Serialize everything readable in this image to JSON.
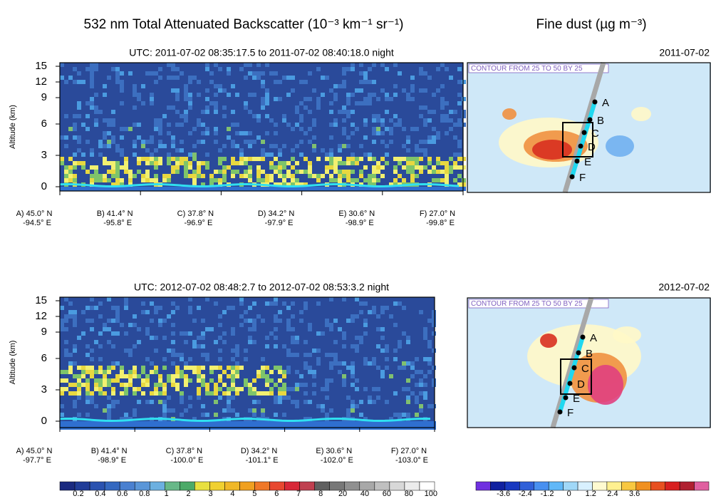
{
  "title_left": "532 nm Total Attenuated Backscatter (10⁻³ km⁻¹ sr⁻¹)",
  "title_right": "Fine dust (µg m⁻³)",
  "panels": [
    {
      "subtitle": "UTC: 2011-07-02 08:35:17.5 to 2011-07-02 08:40:18.0 night",
      "y_label": "Altitude (km)",
      "ylim": [
        0,
        15
      ],
      "yticks": [
        0,
        3,
        6,
        9,
        12,
        15
      ],
      "x_labels": [
        {
          "lat": "A) 45.0° N",
          "lon": "-94.5° E"
        },
        {
          "lat": "B) 41.4° N",
          "lon": "-95.8° E"
        },
        {
          "lat": "C) 37.8° N",
          "lon": "-96.9° E"
        },
        {
          "lat": "D) 34.2° N",
          "lon": "-97.9° E"
        },
        {
          "lat": "E) 30.6° N",
          "lon": "-98.9° E"
        },
        {
          "lat": "F) 27.0° N",
          "lon": "-99.8° E"
        }
      ],
      "map_date": "2011-07-02",
      "map_contour": "CONTOUR FROM 25 TO 50 BY 25",
      "track_labels": [
        "A",
        "B",
        "C",
        "D",
        "E",
        "F"
      ]
    },
    {
      "subtitle": "UTC: 2012-07-02 08:48:2.7 to 2012-07-02 08:53:3.2 night",
      "y_label": "Altitude (km)",
      "ylim": [
        0,
        15
      ],
      "yticks": [
        0,
        3,
        6,
        9,
        12,
        15
      ],
      "x_labels": [
        {
          "lat": "A) 45.0° N",
          "lon": "-97.7° E"
        },
        {
          "lat": "B) 41.4° N",
          "lon": "-98.9° E"
        },
        {
          "lat": "C) 37.8° N",
          "lon": "-100.0° E"
        },
        {
          "lat": "D) 34.2° N",
          "lon": "-101.1° E"
        },
        {
          "lat": "E) 30.6° N",
          "lon": "-102.0° E"
        },
        {
          "lat": "F) 27.0° N",
          "lon": "-103.0° E"
        }
      ],
      "map_date": "2012-07-02",
      "map_contour": "CONTOUR FROM 25 TO 50 BY 25",
      "track_labels": [
        "A",
        "B",
        "C",
        "D",
        "E",
        "F"
      ]
    }
  ],
  "colorbar_left": [
    "0.2",
    "0.4",
    "0.6",
    "0.8",
    "1",
    "2",
    "3",
    "4",
    "5",
    "6",
    "7",
    "8",
    "20",
    "40",
    "60",
    "80",
    "100"
  ],
  "colorbar_right": [
    "-3.6",
    "-2.4",
    "-1.2",
    "0",
    "1.2",
    "2.4",
    "3.6"
  ]
}
